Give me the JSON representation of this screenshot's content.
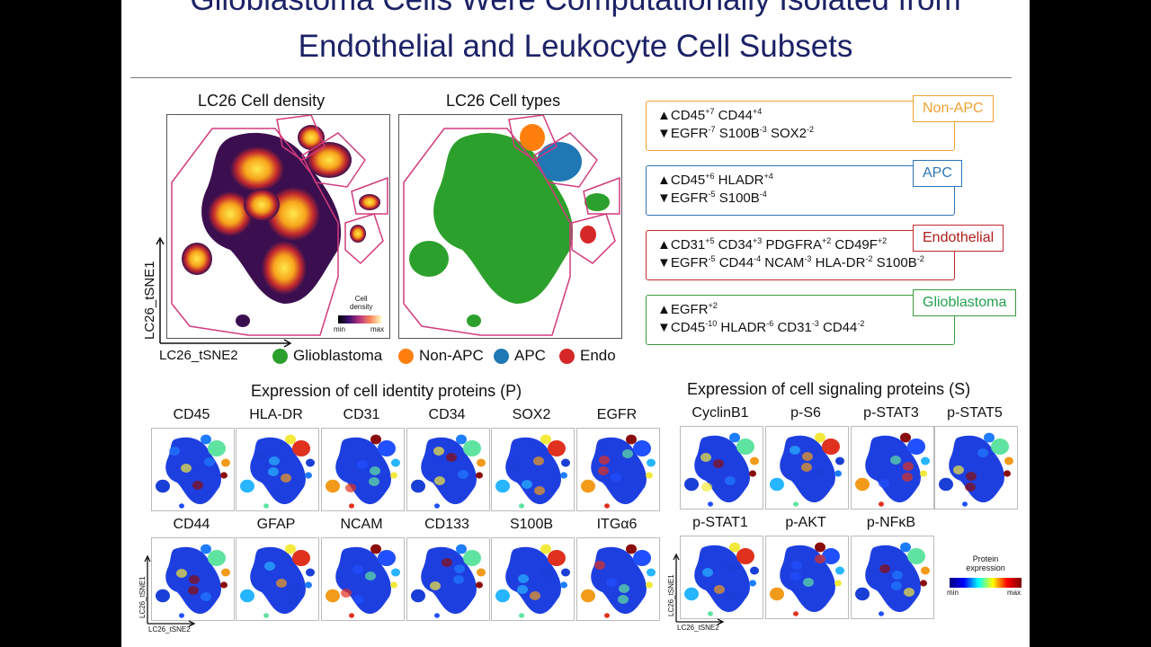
{
  "title": {
    "line1": "Glioblastoma Cells Were Computationally Isolated from",
    "line2": "Endothelial and Leukocyte Cell Subsets"
  },
  "density_panel": {
    "title": "LC26 Cell density",
    "colorbar_title_1": "Cell",
    "colorbar_title_2": "density",
    "min": "min",
    "max": "max"
  },
  "types_panel": {
    "title": "LC26 Cell types"
  },
  "axes": {
    "x": "LC26_tSNE2",
    "y": "LC26_tSNE1"
  },
  "legend": [
    {
      "label": "Glioblastoma",
      "color": "#2ca02c"
    },
    {
      "label": "Non-APC",
      "color": "#ff7f0e"
    },
    {
      "label": "APC",
      "color": "#1f77b4"
    },
    {
      "label": "Endo",
      "color": "#d62728"
    }
  ],
  "marker_boxes": [
    {
      "tag": "Non-APC",
      "color": "#f0a030",
      "tag_color": "#f0a030",
      "up": [
        [
          "CD45",
          "+7"
        ],
        [
          "CD44",
          "+4"
        ]
      ],
      "down": [
        [
          "EGFR",
          "-7"
        ],
        [
          "S100B",
          "-3"
        ],
        [
          "SOX2",
          "-2"
        ]
      ]
    },
    {
      "tag": "APC",
      "color": "#2e75b6",
      "tag_color": "#2e75b6",
      "up": [
        [
          "CD45",
          "+6"
        ],
        [
          "HLADR",
          "+4"
        ]
      ],
      "down": [
        [
          "EGFR",
          "-5"
        ],
        [
          "S100B",
          "-4"
        ]
      ]
    },
    {
      "tag": "Endothelial",
      "color": "#c0282d",
      "tag_color": "#b01c1c",
      "up": [
        [
          "CD31",
          "+5"
        ],
        [
          "CD34",
          "+3"
        ],
        [
          "PDGFRA",
          "+2"
        ],
        [
          "CD49F",
          "+2"
        ]
      ],
      "down": [
        [
          "EGFR",
          "-5"
        ],
        [
          "CD44",
          "-4"
        ],
        [
          "NCAM",
          "-3"
        ],
        [
          "HLA-DR",
          "-2"
        ],
        [
          "S100B",
          "-2"
        ]
      ]
    },
    {
      "tag": "Glioblastoma",
      "color": "#3a9a3a",
      "tag_color": "#22a050",
      "up": [
        [
          "EGFR",
          "+2"
        ]
      ],
      "down": [
        [
          "CD45",
          "-10"
        ],
        [
          "HLADR",
          "-6"
        ],
        [
          "CD31",
          "-3"
        ],
        [
          "CD44",
          "-2"
        ]
      ]
    }
  ],
  "up_arrow": "▲",
  "down_arrow": "▼",
  "identity": {
    "title": "Expression of cell identity proteins (P)",
    "row1": [
      "CD45",
      "HLA-DR",
      "CD31",
      "CD34",
      "SOX2",
      "EGFR"
    ],
    "row2": [
      "CD44",
      "GFAP",
      "NCAM",
      "CD133",
      "S100B",
      "ITGα6"
    ]
  },
  "signaling": {
    "title": "Expression of cell signaling proteins (S)",
    "row1": [
      "CyclinB1",
      "p-S6",
      "p-STAT3",
      "p-STAT5"
    ],
    "row2": [
      "p-STAT1",
      "p-AKT",
      "p-NFκB"
    ]
  },
  "expr_legend": {
    "title_1": "Protein",
    "title_2": "expression",
    "min": "min",
    "max": "max"
  },
  "small_axes": {
    "x": "LC26_tSNE2",
    "y": "LC26_tSNE1"
  }
}
